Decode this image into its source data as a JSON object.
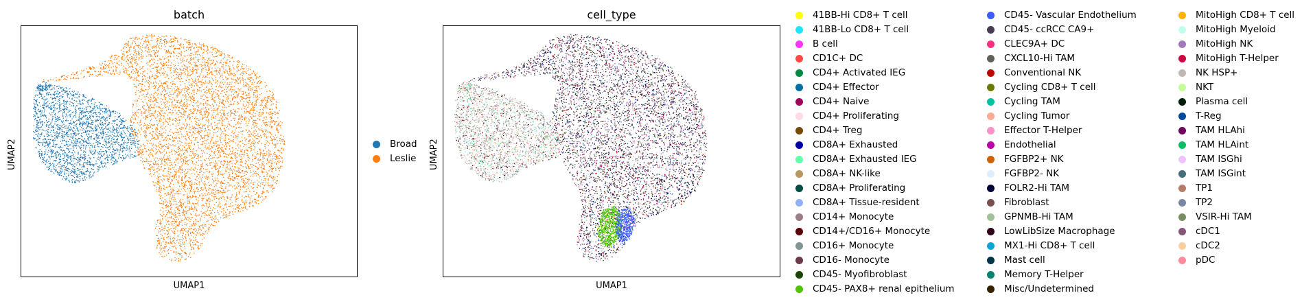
{
  "panels": {
    "batch": {
      "title": "batch",
      "xlabel": "UMAP1",
      "ylabel": "UMAP2"
    },
    "cell_type": {
      "title": "cell_type",
      "xlabel": "UMAP1",
      "ylabel": "UMAP2"
    }
  },
  "chart_data": [
    {
      "type": "scatter",
      "title": "batch",
      "xlabel": "UMAP1",
      "ylabel": "UMAP2",
      "grid": false,
      "ticks": false,
      "legend_placement": "right",
      "series": [
        {
          "name": "Broad",
          "color": "#1f77b4"
        },
        {
          "name": "Leslie",
          "color": "#ff7f0e"
        }
      ]
    },
    {
      "type": "scatter",
      "title": "cell_type",
      "xlabel": "UMAP1",
      "ylabel": "UMAP2",
      "grid": false,
      "ticks": false,
      "legend_placement": "right",
      "series": [
        {
          "name": "41BB-Hi CD8+ T cell",
          "color": "#ffff00"
        },
        {
          "name": "41BB-Lo CD8+ T cell",
          "color": "#1ce6ff"
        },
        {
          "name": "B cell",
          "color": "#ff34ff"
        },
        {
          "name": "CD1C+ DC",
          "color": "#ff4a46"
        },
        {
          "name": "CD4+ Activated IEG",
          "color": "#008941"
        },
        {
          "name": "CD4+ Effector",
          "color": "#006fa6"
        },
        {
          "name": "CD4+ Naive",
          "color": "#a30059"
        },
        {
          "name": "CD4+ Proliferating",
          "color": "#ffdbe5"
        },
        {
          "name": "CD4+ Treg",
          "color": "#7a4900"
        },
        {
          "name": "CD8A+ Exhausted",
          "color": "#0000a6"
        },
        {
          "name": "CD8A+ Exhausted IEG",
          "color": "#63ffac"
        },
        {
          "name": "CD8A+ NK-like",
          "color": "#b79762"
        },
        {
          "name": "CD8A+ Proliferating",
          "color": "#004d43"
        },
        {
          "name": "CD8A+ Tissue-resident",
          "color": "#8fb0ff"
        },
        {
          "name": "CD14+ Monocyte",
          "color": "#997d87"
        },
        {
          "name": "CD14+/CD16+ Monocyte",
          "color": "#5a0007"
        },
        {
          "name": "CD16+ Monocyte",
          "color": "#809693"
        },
        {
          "name": "CD16- Monocyte",
          "color": "#6a3a4c"
        },
        {
          "name": "CD45- Myofibroblast",
          "color": "#1b4400"
        },
        {
          "name": "CD45- PAX8+ renal epithelium",
          "color": "#4fc601"
        },
        {
          "name": "CD45- Vascular Endothelium",
          "color": "#3b5dff"
        },
        {
          "name": "CD45- ccRCC CA9+",
          "color": "#4a3b53"
        },
        {
          "name": "CLEC9A+ DC",
          "color": "#ff2f80"
        },
        {
          "name": "CXCL10-Hi TAM",
          "color": "#61615a"
        },
        {
          "name": "Conventional NK",
          "color": "#ba0900"
        },
        {
          "name": "Cycling CD8+ T cell",
          "color": "#6b7900"
        },
        {
          "name": "Cycling TAM",
          "color": "#00c2a0"
        },
        {
          "name": "Cycling Tumor",
          "color": "#ffaa92"
        },
        {
          "name": "Effector T-Helper",
          "color": "#ff90c9"
        },
        {
          "name": "Endothelial",
          "color": "#b903aa"
        },
        {
          "name": "FGFBP2+ NK",
          "color": "#d16100"
        },
        {
          "name": "FGFBP2- NK",
          "color": "#ddefff"
        },
        {
          "name": "FOLR2-Hi TAM",
          "color": "#000035"
        },
        {
          "name": "Fibroblast",
          "color": "#7b4f4b"
        },
        {
          "name": "GPNMB-Hi TAM",
          "color": "#a1c299"
        },
        {
          "name": "LowLibSize Macrophage",
          "color": "#300018"
        },
        {
          "name": "MX1-Hi CD8+ T cell",
          "color": "#0aa6d8"
        },
        {
          "name": "Mast cell",
          "color": "#013349"
        },
        {
          "name": "Memory T-Helper",
          "color": "#00846f"
        },
        {
          "name": "Misc/Undetermined",
          "color": "#372101"
        },
        {
          "name": "MitoHigh CD8+ T cell",
          "color": "#ffb500"
        },
        {
          "name": "MitoHigh Myeloid",
          "color": "#c2ffed"
        },
        {
          "name": "MitoHigh NK",
          "color": "#a079bf"
        },
        {
          "name": "MitoHigh T-Helper",
          "color": "#cc0744"
        },
        {
          "name": "NK HSP+",
          "color": "#c0b9b2"
        },
        {
          "name": "NKT",
          "color": "#c2ff99"
        },
        {
          "name": "Plasma cell",
          "color": "#001e09"
        },
        {
          "name": "T-Reg",
          "color": "#00489c"
        },
        {
          "name": "TAM HLAhi",
          "color": "#6f0062"
        },
        {
          "name": "TAM HLAint",
          "color": "#0cbd66"
        },
        {
          "name": "TAM ISGhi",
          "color": "#eec3ff"
        },
        {
          "name": "TAM ISGint",
          "color": "#456d75"
        },
        {
          "name": "TP1",
          "color": "#b77b68"
        },
        {
          "name": "TP2",
          "color": "#7a87a1"
        },
        {
          "name": "VSIR-Hi TAM",
          "color": "#788d66"
        },
        {
          "name": "cDC1",
          "color": "#885578"
        },
        {
          "name": "cDC2",
          "color": "#fad09f"
        },
        {
          "name": "pDC",
          "color": "#ff8a9a"
        }
      ]
    }
  ]
}
